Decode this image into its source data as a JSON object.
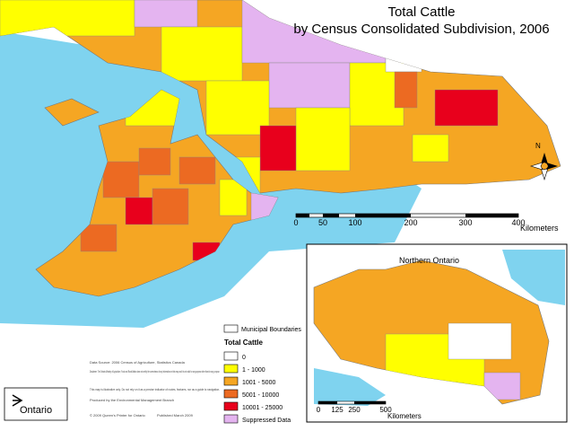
{
  "header": {
    "title": "Total Cattle",
    "subtitle": "by Census Consolidated Subdivision, 2006"
  },
  "north_arrow": "N",
  "scale_bar": {
    "labels": [
      "0",
      "50",
      "100",
      "200",
      "300",
      "400"
    ],
    "unit": "Kilometers"
  },
  "inset": {
    "title": "Northern Ontario",
    "scale_labels": [
      "0",
      "125",
      "250",
      "500"
    ],
    "unit": "Kilometers"
  },
  "legend": {
    "boundary_label": "Municipal Boundaries",
    "title": "Total Cattle",
    "items": [
      {
        "label": "0",
        "color": "#ffffff"
      },
      {
        "label": "1 - 1000",
        "color": "#ffff00"
      },
      {
        "label": "1001 - 5000",
        "color": "#f5a623"
      },
      {
        "label": "5001 - 10000",
        "color": "#ec6a22"
      },
      {
        "label": "10001 - 25000",
        "color": "#e8001c"
      },
      {
        "label": "Suppressed Data",
        "color": "#e4b4f0"
      }
    ]
  },
  "notes": [
    "Data Source: 2006 Census of Agriculture, Statistics Canada",
    "Disclaimer: The Ontario Ministry of Agriculture, Food and Rural Affairs does not certify the correctness of any information on this map and it is not valid for any purpose other than for any purpose.",
    "This map is illustrative only. Do not rely on it as a precise indicator of routes, features, nor as a guide to navigation.",
    "Produced by the Environmental Management Branch",
    "© 2009 Queen's Printer for Ontario",
    "Published March 2009"
  ],
  "logo": "Ontario"
}
